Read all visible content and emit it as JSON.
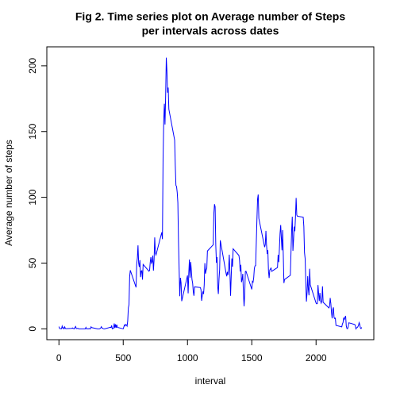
{
  "chart_data": {
    "type": "line",
    "title": [
      "Fig 2. Time series plot on Average number of Steps",
      "per intervals across dates"
    ],
    "x_label": "interval",
    "y_label": "Average number of steps",
    "xlim": [
      -94.2,
      2449.2
    ],
    "ylim": [
      -8.25,
      214.42
    ],
    "xticks": [
      0,
      500,
      1000,
      1500,
      2000
    ],
    "yticks": [
      0,
      50,
      100,
      150,
      200
    ],
    "x": [
      0,
      5,
      10,
      15,
      20,
      25,
      30,
      35,
      40,
      45,
      50,
      55,
      100,
      105,
      110,
      115,
      120,
      125,
      130,
      135,
      140,
      145,
      150,
      155,
      200,
      205,
      210,
      215,
      220,
      225,
      230,
      235,
      240,
      245,
      250,
      255,
      300,
      305,
      310,
      315,
      320,
      325,
      330,
      335,
      340,
      345,
      350,
      355,
      400,
      405,
      410,
      415,
      420,
      425,
      430,
      435,
      440,
      445,
      450,
      455,
      500,
      505,
      510,
      515,
      520,
      525,
      530,
      535,
      540,
      545,
      550,
      555,
      600,
      605,
      610,
      615,
      620,
      625,
      630,
      635,
      640,
      645,
      650,
      655,
      700,
      705,
      710,
      715,
      720,
      725,
      730,
      735,
      740,
      745,
      750,
      755,
      800,
      805,
      810,
      815,
      820,
      825,
      830,
      835,
      840,
      845,
      850,
      855,
      900,
      905,
      910,
      915,
      920,
      925,
      930,
      935,
      940,
      945,
      950,
      955,
      1000,
      1005,
      1010,
      1015,
      1020,
      1025,
      1030,
      1035,
      1040,
      1045,
      1050,
      1055,
      1100,
      1105,
      1110,
      1115,
      1120,
      1125,
      1130,
      1135,
      1140,
      1145,
      1150,
      1155,
      1200,
      1205,
      1210,
      1215,
      1220,
      1225,
      1230,
      1235,
      1240,
      1245,
      1250,
      1255,
      1300,
      1305,
      1310,
      1315,
      1320,
      1325,
      1330,
      1335,
      1340,
      1345,
      1350,
      1355,
      1400,
      1405,
      1410,
      1415,
      1420,
      1425,
      1430,
      1435,
      1440,
      1445,
      1450,
      1455,
      1500,
      1505,
      1510,
      1515,
      1520,
      1525,
      1530,
      1535,
      1540,
      1545,
      1550,
      1555,
      1600,
      1605,
      1610,
      1615,
      1620,
      1625,
      1630,
      1635,
      1640,
      1645,
      1650,
      1655,
      1700,
      1705,
      1710,
      1715,
      1720,
      1725,
      1730,
      1735,
      1740,
      1745,
      1750,
      1755,
      1800,
      1805,
      1810,
      1815,
      1820,
      1825,
      1830,
      1835,
      1840,
      1845,
      1850,
      1855,
      1900,
      1905,
      1910,
      1915,
      1920,
      1925,
      1930,
      1935,
      1940,
      1945,
      1950,
      1955,
      2000,
      2005,
      2010,
      2015,
      2020,
      2025,
      2030,
      2035,
      2040,
      2045,
      2050,
      2055,
      2100,
      2105,
      2110,
      2115,
      2120,
      2125,
      2130,
      2135,
      2140,
      2145,
      2150,
      2155,
      2200,
      2205,
      2210,
      2215,
      2220,
      2225,
      2230,
      2235,
      2240,
      2245,
      2250,
      2255,
      2300,
      2305,
      2310,
      2315,
      2320,
      2325,
      2330,
      2335,
      2340,
      2345,
      2350,
      2355
    ],
    "series": [
      {
        "color": "#0000ff",
        "values": [
          1.7,
          0.3,
          0.1,
          0.15,
          0.07,
          2.1,
          0.5,
          0.87,
          0,
          1.47,
          0.3,
          0.13,
          0.32,
          0.68,
          0.15,
          0.34,
          0,
          1.1,
          1.8,
          0.17,
          0.17,
          0.38,
          0.26,
          0,
          0,
          0,
          1.13,
          0,
          0,
          0.13,
          0,
          0.23,
          0,
          0,
          1.55,
          0.94,
          0,
          0,
          0,
          0,
          0.21,
          0.62,
          1.62,
          0.58,
          0.49,
          0.08,
          0,
          0,
          1.19,
          0.94,
          2.57,
          0,
          0.34,
          0.36,
          4.11,
          0.66,
          3.49,
          0.83,
          3.11,
          1.11,
          0,
          1.57,
          3.0,
          2.25,
          3.32,
          2.96,
          2.09,
          6.06,
          16.0,
          18.3,
          39.5,
          44.5,
          31.5,
          49.3,
          53.8,
          63.5,
          50.0,
          47.1,
          52.2,
          39.3,
          44.0,
          44.2,
          37.4,
          49.0,
          43.8,
          44.4,
          50.5,
          54.5,
          49.9,
          51.0,
          55.7,
          44.3,
          52.3,
          69.5,
          57.8,
          56.2,
          73.4,
          68.2,
          129.4,
          157.5,
          171.2,
          155.4,
          177.3,
          206.2,
          195.9,
          179.6,
          183.4,
          167.0,
          143.5,
          124.0,
          109.1,
          108.1,
          103.7,
          95.9,
          66.2,
          45.2,
          24.8,
          38.8,
          34.98,
          21.06,
          40.6,
          26.98,
          42.4,
          52.7,
          38.9,
          50.8,
          44.3,
          37.4,
          34.7,
          28.3,
          25.1,
          31.9,
          31.4,
          29.7,
          21.3,
          25.5,
          28.4,
          26.5,
          33.4,
          50.0,
          42.0,
          44.6,
          46.0,
          59.2,
          63.9,
          87.7,
          94.8,
          92.8,
          63.4,
          50.2,
          54.5,
          32.4,
          26.5,
          37.7,
          45.1,
          67.3,
          42.3,
          39.9,
          43.3,
          40.98,
          46.2,
          56.4,
          42.8,
          25.1,
          39.97,
          53.5,
          47.3,
          60.8,
          55.8,
          51.96,
          43.6,
          48.7,
          35.5,
          37.5,
          41.8,
          27.5,
          17.1,
          26.1,
          43.6,
          43.8,
          30.0,
          36.1,
          35.5,
          38.8,
          45.96,
          47.8,
          48.1,
          65.3,
          82.9,
          98.7,
          102.1,
          83.96,
          62.1,
          64.1,
          74.5,
          63.2,
          56.9,
          59.8,
          43.9,
          38.6,
          44.7,
          45.5,
          46.2,
          43.7,
          46.6,
          56.3,
          50.7,
          61.2,
          72.7,
          78.9,
          68.9,
          59.7,
          75.1,
          56.5,
          34.8,
          37.5,
          40.7,
          58.0,
          74.7,
          85.3,
          59.3,
          67.8,
          77.7,
          74.2,
          85.3,
          99.5,
          86.6,
          85.6,
          84.9,
          77.8,
          58.0,
          53.4,
          36.3,
          20.7,
          27.4,
          40.0,
          30.2,
          25.5,
          45.7,
          33.5,
          19.6,
          19.0,
          19.3,
          33.3,
          26.8,
          21.2,
          27.3,
          21.3,
          19.6,
          21.3,
          32.3,
          20.2,
          15.9,
          17.2,
          23.5,
          19.2,
          12.5,
          8.0,
          14.7,
          16.3,
          8.7,
          7.8,
          8.1,
          2.6,
          1.5,
          3.7,
          4.8,
          8.5,
          7.1,
          8.7,
          9.8,
          2.2,
          0.3,
          0.1,
          1.6,
          4.6,
          3.3,
          2.8,
          0,
          0.8,
          0.96,
          1.6,
          2.6,
          4.7,
          3.3,
          0.6,
          0.2,
          1.1
        ]
      }
    ]
  }
}
